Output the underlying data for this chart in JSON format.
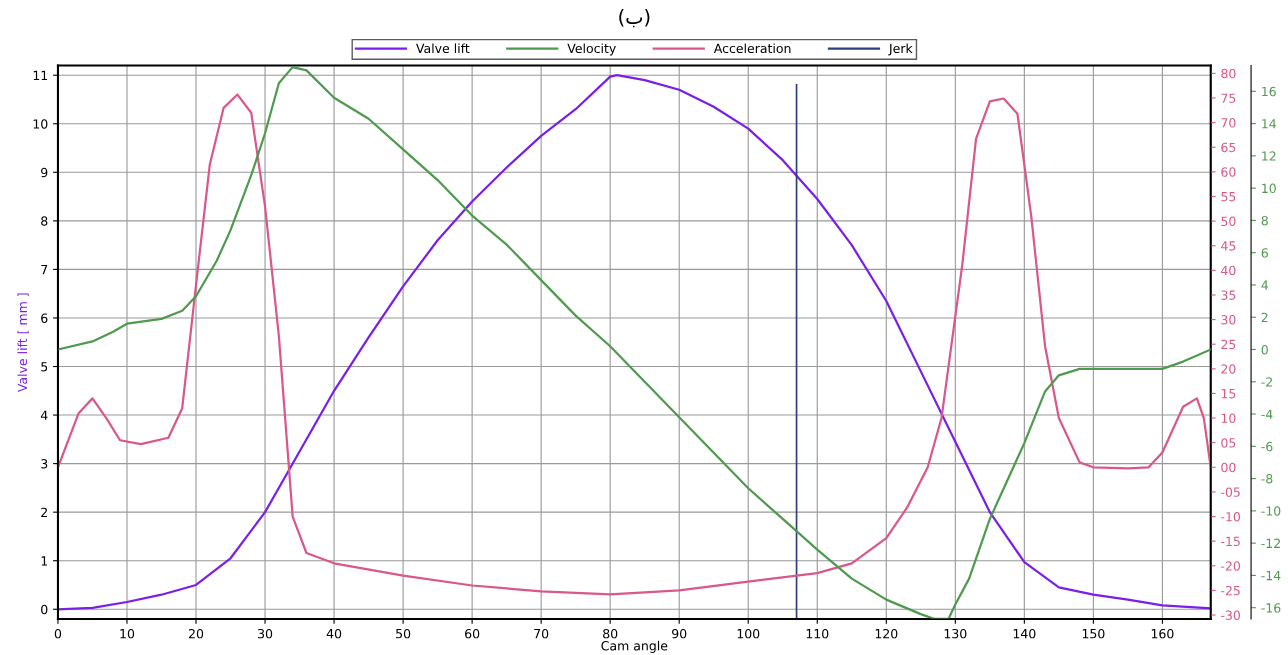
{
  "chart_data": {
    "type": "line",
    "title": "(ب)",
    "xlabel": "Cam angle",
    "ylabel": "Valve lift [ mm ]",
    "xlim": [
      0,
      167
    ],
    "xticks": [
      0,
      10,
      20,
      30,
      40,
      50,
      60,
      70,
      80,
      90,
      100,
      110,
      120,
      130,
      140,
      150,
      160
    ],
    "ylim": [
      -0.2,
      11.2
    ],
    "yticks": [
      0,
      1,
      2,
      3,
      4,
      5,
      6,
      7,
      8,
      9,
      10,
      11
    ],
    "y2lim": [
      -30.8,
      81.6
    ],
    "y2ticks": [
      -30,
      -25,
      -20,
      -15,
      -10,
      {
        "value": -5,
        "label": "-05"
      },
      {
        "value": 0,
        "label": "00"
      },
      {
        "value": 5,
        "label": "05"
      },
      10,
      15,
      20,
      25,
      30,
      35,
      40,
      45,
      50,
      55,
      60,
      65,
      70,
      75,
      80
    ],
    "y3lim": [
      -16.7,
      17.6
    ],
    "y3ticks": [
      -16,
      -14,
      -12,
      -10,
      -8,
      -6,
      -4,
      -2,
      0,
      2,
      4,
      6,
      8,
      10,
      12,
      14,
      16
    ],
    "grid": true,
    "legend": "top",
    "marker": "none",
    "line_style": "solid",
    "ref_lines": [
      {
        "axis": "x",
        "value": 107,
        "color": "#2b3f7a"
      }
    ],
    "series": [
      {
        "name": "Valve lift",
        "color": "#7a1fe8",
        "x": [
          0,
          5,
          10,
          15,
          20,
          25,
          30,
          35,
          40,
          45,
          50,
          55,
          60,
          65,
          70,
          75,
          80,
          81,
          85,
          90,
          95,
          100,
          105,
          110,
          115,
          120,
          125,
          130,
          135,
          140,
          145,
          150,
          155,
          160,
          167
        ],
        "values": [
          0,
          0.03,
          0.15,
          0.3,
          0.5,
          1.05,
          2.0,
          3.25,
          4.5,
          5.6,
          6.65,
          7.6,
          8.4,
          9.1,
          9.75,
          10.3,
          10.97,
          11.0,
          10.9,
          10.7,
          10.35,
          9.9,
          9.25,
          8.45,
          7.5,
          6.35,
          4.9,
          3.45,
          2.0,
          0.97,
          0.45,
          0.3,
          0.2,
          0.08,
          0.02
        ]
      },
      {
        "name": "Velocity",
        "color": "#4f9a4f",
        "axis": "y3",
        "x": [
          0,
          5,
          8,
          10,
          15,
          18,
          20,
          23,
          25,
          28,
          30,
          32,
          34,
          36,
          40,
          45,
          50,
          55,
          60,
          65,
          70,
          75,
          80,
          85,
          90,
          95,
          100,
          105,
          110,
          115,
          120,
          125,
          127,
          129,
          130,
          132,
          135,
          140,
          143,
          145,
          148,
          150,
          155,
          160,
          163,
          167
        ],
        "values": [
          0,
          0.5,
          1.1,
          1.6,
          1.9,
          2.4,
          3.3,
          5.5,
          7.4,
          10.8,
          13.4,
          16.5,
          17.5,
          17.3,
          15.6,
          14.3,
          12.4,
          10.5,
          8.3,
          6.5,
          4.3,
          2.1,
          0.2,
          -2.0,
          -4.2,
          -6.4,
          -8.6,
          -10.5,
          -12.4,
          -14.2,
          -15.5,
          -16.4,
          -16.7,
          -16.7,
          -15.8,
          -14.2,
          -10.5,
          -5.8,
          -2.6,
          -1.6,
          -1.2,
          -1.2,
          -1.2,
          -1.2,
          -0.75,
          0
        ]
      },
      {
        "name": "Acceleration",
        "color": "#d9578a",
        "axis": "y2",
        "x": [
          0,
          3,
          5,
          7,
          9,
          12,
          16,
          18,
          20,
          22,
          24,
          26,
          28,
          30,
          32,
          34,
          36,
          40,
          50,
          60,
          70,
          80,
          90,
          100,
          110,
          115,
          120,
          123,
          126,
          128,
          131,
          133,
          135,
          137,
          139,
          141,
          143,
          145,
          148,
          150,
          155,
          158,
          160,
          163,
          165,
          166,
          167
        ],
        "values": [
          0,
          11,
          14,
          10,
          5.5,
          4.7,
          6,
          12,
          37,
          61.5,
          73,
          75.7,
          72,
          53,
          26.7,
          -10,
          -17.4,
          -19.5,
          -22,
          -24,
          -25.2,
          -25.8,
          -25,
          -23.2,
          -21.5,
          -19.5,
          -14.4,
          -8.2,
          0,
          10,
          41,
          66.7,
          74.3,
          74.9,
          71.8,
          51,
          24.6,
          10,
          1,
          0,
          -0.2,
          0,
          3,
          12.3,
          14,
          10,
          0
        ]
      },
      {
        "name": "Jerk",
        "color": "#2b3f7a"
      }
    ]
  }
}
